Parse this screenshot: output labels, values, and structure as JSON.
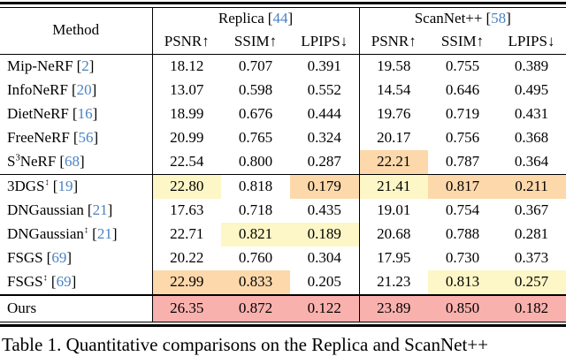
{
  "colors": {
    "best": "#f9b1ad",
    "second": "#fcd8ab",
    "third": "#fdf6c6",
    "cite": "#4a82c4"
  },
  "symbols": {
    "lb": "[",
    "rb": "]"
  },
  "header": {
    "method": "Method",
    "datasets": [
      {
        "name": "Replica",
        "cite": "44"
      },
      {
        "name": "ScanNet++",
        "cite": "58"
      }
    ],
    "metrics": [
      "PSNR↑",
      "SSIM↑",
      "LPIPS↓"
    ]
  },
  "rows": [
    {
      "pre": "Mip-NeRF",
      "sup": "",
      "post": "",
      "cite": "2",
      "v": [
        "18.12",
        "0.707",
        "0.391",
        "19.58",
        "0.755",
        "0.389"
      ]
    },
    {
      "pre": "InfoNeRF",
      "sup": "",
      "post": "",
      "cite": "20",
      "v": [
        "13.07",
        "0.598",
        "0.552",
        "14.54",
        "0.646",
        "0.495"
      ]
    },
    {
      "pre": "DietNeRF",
      "sup": "",
      "post": "",
      "cite": "16",
      "v": [
        "18.99",
        "0.676",
        "0.444",
        "19.76",
        "0.719",
        "0.431"
      ]
    },
    {
      "pre": "FreeNeRF",
      "sup": "",
      "post": "",
      "cite": "56",
      "v": [
        "20.99",
        "0.765",
        "0.324",
        "20.17",
        "0.756",
        "0.368"
      ]
    },
    {
      "pre": "S",
      "sup": "3",
      "post": "NeRF",
      "cite": "68",
      "v": [
        "22.54",
        "0.800",
        "0.287",
        "22.21",
        "0.787",
        "0.364"
      ],
      "hl": [
        null,
        null,
        null,
        "second",
        null,
        null
      ]
    },
    {
      "pre": "3DGS",
      "sup": "↕",
      "post": "",
      "cite": "19",
      "v": [
        "22.80",
        "0.818",
        "0.179",
        "21.41",
        "0.817",
        "0.211"
      ],
      "hl": [
        "third",
        null,
        "second",
        "third",
        "second",
        "second"
      ]
    },
    {
      "pre": "DNGaussian",
      "sup": "",
      "post": "",
      "cite": "21",
      "v": [
        "17.63",
        "0.718",
        "0.435",
        "19.01",
        "0.754",
        "0.367"
      ]
    },
    {
      "pre": "DNGaussian",
      "sup": "↕",
      "post": "",
      "cite": "21",
      "v": [
        "22.71",
        "0.821",
        "0.189",
        "20.68",
        "0.788",
        "0.281"
      ],
      "hl": [
        null,
        "third",
        "third",
        null,
        null,
        null
      ]
    },
    {
      "pre": "FSGS",
      "sup": "",
      "post": "",
      "cite": "69",
      "v": [
        "20.22",
        "0.760",
        "0.304",
        "17.95",
        "0.730",
        "0.373"
      ]
    },
    {
      "pre": "FSGS",
      "sup": "↕",
      "post": "",
      "cite": "69",
      "v": [
        "22.99",
        "0.833",
        "0.205",
        "21.23",
        "0.813",
        "0.257"
      ],
      "hl": [
        "second",
        "second",
        null,
        null,
        "third",
        "third"
      ]
    },
    {
      "pre": "Ours",
      "sup": "",
      "post": "",
      "v": [
        "26.35",
        "0.872",
        "0.122",
        "23.89",
        "0.850",
        "0.182"
      ],
      "hl": [
        "best",
        "best",
        "best",
        "best",
        "best",
        "best"
      ]
    }
  ],
  "caption": "Table 1. Quantitative comparisons on the Replica and ScanNet++"
}
